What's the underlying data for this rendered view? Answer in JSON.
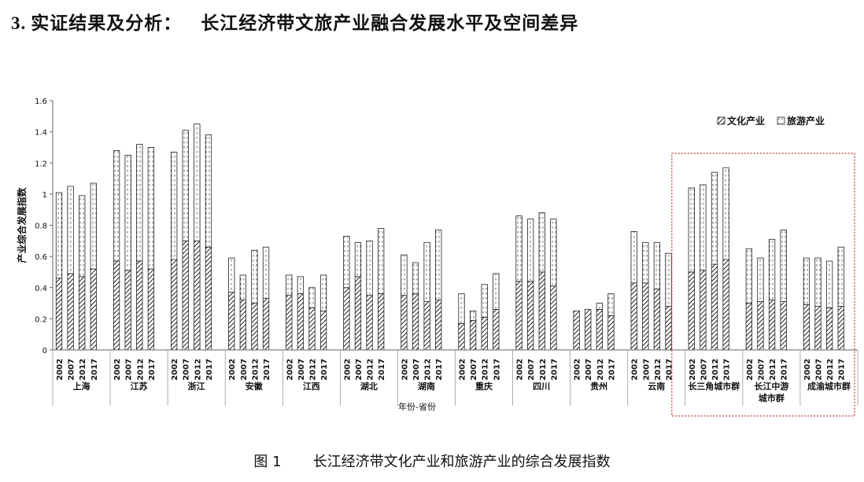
{
  "heading": {
    "number": "3.",
    "part1": "实证结果及分析：",
    "part2": "长江经济带文旅产业融合发展水平及空间差异"
  },
  "caption": {
    "label": "图 1",
    "text": "长江经济带文化产业和旅游产业的综合发展指数"
  },
  "colors": {
    "frame": "#c0392b",
    "bar_stroke": "#222222",
    "axis": "#666666"
  },
  "chart_data": {
    "type": "bar",
    "stacked": true,
    "ylabel": "产业综合发展指数",
    "xlabel": "年份-省份",
    "ylim": [
      0,
      1.6
    ],
    "yticks": [
      "0",
      "0.2",
      "0.4",
      "0.6",
      "0.8",
      "1",
      "1.2",
      "1.4",
      "1.6"
    ],
    "legend_position": "top-right",
    "legend": [
      {
        "name": "文化产业",
        "pattern": "diagonal-hatch"
      },
      {
        "name": "旅游产业",
        "pattern": "dotted-white"
      }
    ],
    "years": [
      "2002",
      "2007",
      "2012",
      "2017"
    ],
    "highlight_box": {
      "from_group": 11,
      "to_group": 13
    },
    "groups": [
      {
        "name": "上海",
        "culture": [
          0.46,
          0.49,
          0.47,
          0.52
        ],
        "total": [
          1.01,
          1.05,
          0.99,
          1.07
        ]
      },
      {
        "name": "江苏",
        "culture": [
          0.57,
          0.51,
          0.57,
          0.52
        ],
        "total": [
          1.28,
          1.25,
          1.32,
          1.3
        ]
      },
      {
        "name": "浙江",
        "culture": [
          0.58,
          0.7,
          0.7,
          0.66
        ],
        "total": [
          1.27,
          1.41,
          1.45,
          1.38
        ]
      },
      {
        "name": "安徽",
        "culture": [
          0.37,
          0.32,
          0.3,
          0.33
        ],
        "total": [
          0.59,
          0.48,
          0.64,
          0.66
        ]
      },
      {
        "name": "江西",
        "culture": [
          0.35,
          0.36,
          0.27,
          0.25
        ],
        "total": [
          0.48,
          0.47,
          0.4,
          0.48
        ]
      },
      {
        "name": "湖北",
        "culture": [
          0.4,
          0.47,
          0.35,
          0.36
        ],
        "total": [
          0.73,
          0.69,
          0.7,
          0.78
        ]
      },
      {
        "name": "湖南",
        "culture": [
          0.35,
          0.36,
          0.31,
          0.32
        ],
        "total": [
          0.61,
          0.56,
          0.69,
          0.77
        ]
      },
      {
        "name": "重庆",
        "culture": [
          0.17,
          0.19,
          0.21,
          0.26
        ],
        "total": [
          0.36,
          0.25,
          0.42,
          0.49
        ]
      },
      {
        "name": "四川",
        "culture": [
          0.44,
          0.44,
          0.5,
          0.41
        ],
        "total": [
          0.86,
          0.84,
          0.88,
          0.84
        ]
      },
      {
        "name": "贵州",
        "culture": [
          0.25,
          0.26,
          0.26,
          0.22
        ],
        "total": [
          0.25,
          0.26,
          0.3,
          0.36
        ]
      },
      {
        "name": "云南",
        "culture": [
          0.43,
          0.43,
          0.39,
          0.28
        ],
        "total": [
          0.76,
          0.69,
          0.69,
          0.62
        ]
      },
      {
        "name": "长三角城市群",
        "culture": [
          0.5,
          0.51,
          0.55,
          0.58
        ],
        "total": [
          1.04,
          1.06,
          1.14,
          1.17
        ]
      },
      {
        "name": "长江中游\n城市群",
        "culture": [
          0.3,
          0.31,
          0.32,
          0.31
        ],
        "total": [
          0.65,
          0.59,
          0.71,
          0.77
        ]
      },
      {
        "name": "成渝城市群",
        "culture": [
          0.29,
          0.28,
          0.27,
          0.28
        ],
        "total": [
          0.59,
          0.59,
          0.57,
          0.66
        ]
      }
    ]
  }
}
